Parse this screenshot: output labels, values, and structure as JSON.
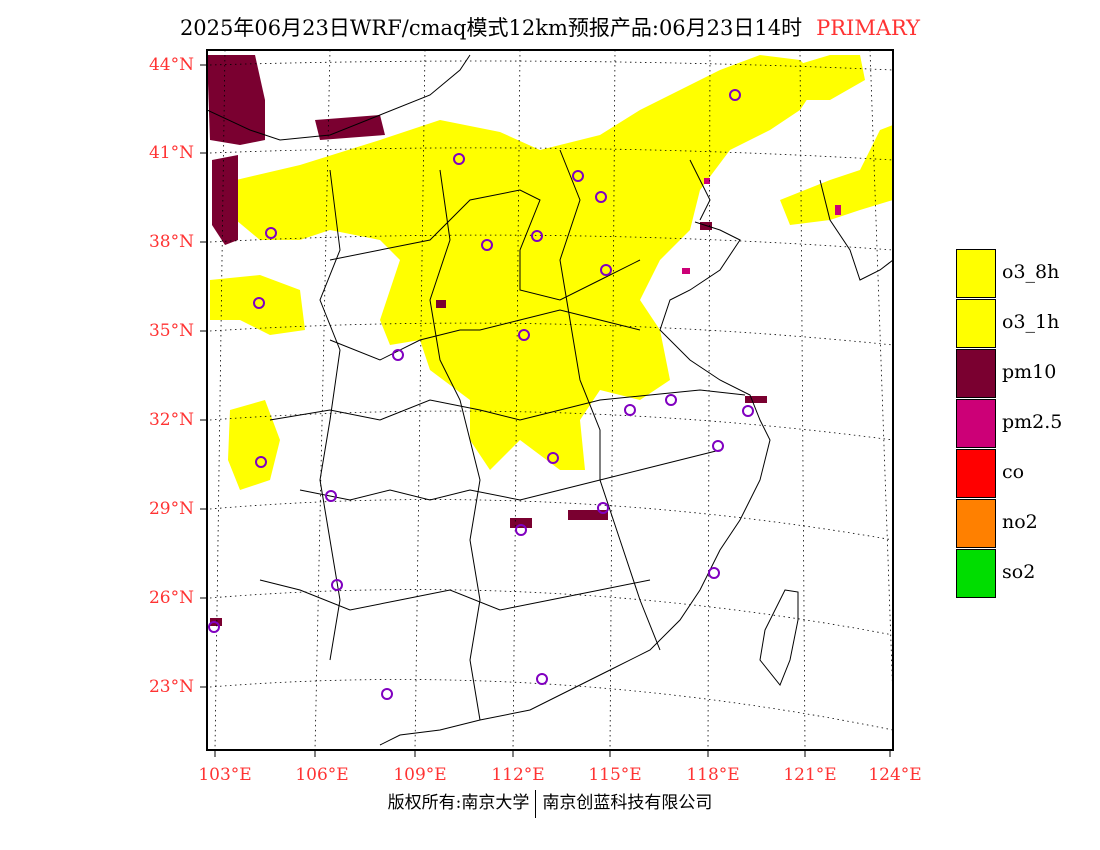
{
  "title": {
    "main": "2025年06月23日WRF/cmaq模式12km预报产品:06月23日14时",
    "tag": "PRIMARY"
  },
  "axes": {
    "lat_labels": [
      "44°N",
      "41°N",
      "38°N",
      "35°N",
      "32°N",
      "29°N",
      "26°N",
      "23°N"
    ],
    "lon_labels": [
      "103°E",
      "106°E",
      "109°E",
      "112°E",
      "115°E",
      "118°E",
      "121°E",
      "124°E"
    ]
  },
  "legend": [
    {
      "label": "o3_8h",
      "color": "#ffff00"
    },
    {
      "label": "o3_1h",
      "color": "#ffff00"
    },
    {
      "label": "pm10",
      "color": "#7a0030"
    },
    {
      "label": "pm2.5",
      "color": "#cc0077"
    },
    {
      "label": "co",
      "color": "#ff0000"
    },
    {
      "label": "no2",
      "color": "#ff8000"
    },
    {
      "label": "so2",
      "color": "#00dd00"
    }
  ],
  "footer": {
    "left": "版权所有:南京大学",
    "right": "南京创蓝科技有限公司"
  },
  "colors": {
    "label_red": "#ff3333",
    "station_circle": "#8000c0",
    "o3": "#ffff00",
    "pm10": "#7a0030",
    "pm25": "#cc0077"
  }
}
